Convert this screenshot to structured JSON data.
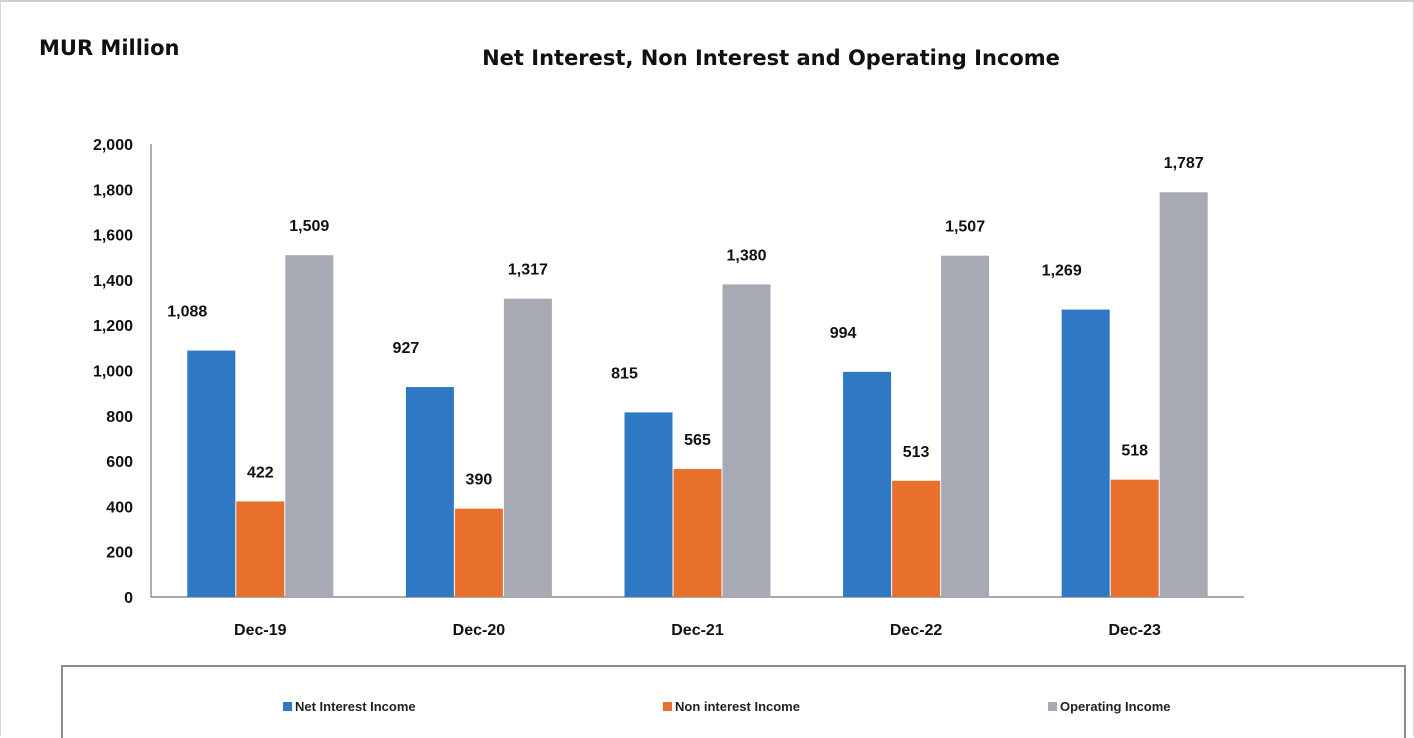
{
  "chart_data": {
    "type": "bar",
    "unit_label": "MUR Million",
    "title": "Net Interest, Non Interest and Operating Income",
    "categories": [
      "Dec-19",
      "Dec-20",
      "Dec-21",
      "Dec-22",
      "Dec-23"
    ],
    "series": [
      {
        "name": "Net Interest Income",
        "color": "#2f78c4",
        "values": [
          1088,
          927,
          815,
          994,
          1269
        ]
      },
      {
        "name": "Non interest Income",
        "color": "#e8702c",
        "values": [
          422,
          390,
          565,
          513,
          518
        ]
      },
      {
        "name": "Operating Income",
        "color": "#a7a9b4",
        "values": [
          1509,
          1317,
          1380,
          1507,
          1787
        ]
      }
    ],
    "data_labels": [
      [
        "1,088",
        "927",
        "815",
        "994",
        "1,269"
      ],
      [
        "422",
        "390",
        "565",
        "513",
        "518"
      ],
      [
        "1,509",
        "1,317",
        "1,380",
        "1,507",
        "1,787"
      ]
    ],
    "y_ticks": [
      "0",
      "200",
      "400",
      "600",
      "800",
      "1,000",
      "1,200",
      "1,400",
      "1,600",
      "1,800",
      "2,000"
    ],
    "ylim": [
      0,
      2000
    ],
    "grid": false,
    "legend_position": "bottom"
  }
}
